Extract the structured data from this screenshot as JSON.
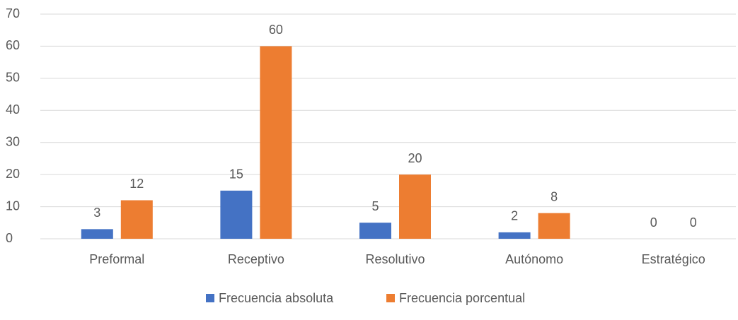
{
  "chart_data": {
    "type": "bar",
    "categories": [
      "Preformal",
      "Receptivo",
      "Resolutivo",
      "Autónomo",
      "Estratégico"
    ],
    "series": [
      {
        "name": "Frecuencia absoluta",
        "color": "#4472c4",
        "values": [
          3,
          15,
          5,
          2,
          0
        ]
      },
      {
        "name": "Frecuencia porcentual",
        "color": "#ed7d31",
        "values": [
          12,
          60,
          20,
          8,
          0
        ]
      }
    ],
    "ylim": [
      0,
      70
    ],
    "yticks": [
      0,
      10,
      20,
      30,
      40,
      50,
      60,
      70
    ],
    "grid": true,
    "legend": "bottom"
  }
}
